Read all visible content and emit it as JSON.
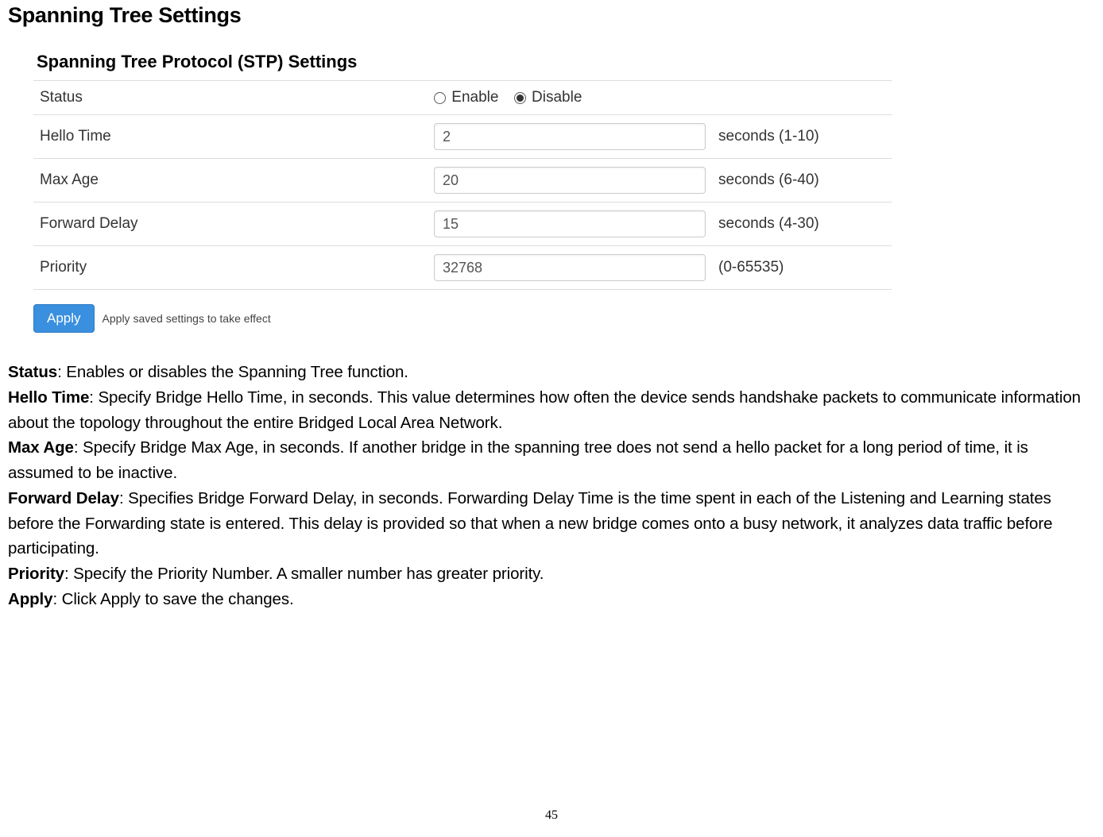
{
  "heading": "Spanning Tree Settings",
  "panel_title": "Spanning Tree Protocol (STP) Settings",
  "rows": {
    "status": {
      "label": "Status",
      "enable_label": "Enable",
      "disable_label": "Disable",
      "selected": "disable"
    },
    "hello_time": {
      "label": "Hello Time",
      "value": "2",
      "unit": "seconds (1-10)"
    },
    "max_age": {
      "label": "Max Age",
      "value": "20",
      "unit": "seconds (6-40)"
    },
    "forward_delay": {
      "label": "Forward Delay",
      "value": "15",
      "unit": "seconds (4-30)"
    },
    "priority": {
      "label": "Priority",
      "value": "32768",
      "unit": "(0-65535)"
    }
  },
  "apply": {
    "button": "Apply",
    "hint": "Apply saved settings to take effect"
  },
  "descriptions": {
    "status_term": "Status",
    "status_text": ": Enables or disables the Spanning Tree function.",
    "hello_term": "Hello Time",
    "hello_text": ": Specify Bridge Hello Time, in seconds. This value determines how often the device sends handshake packets to communicate information about the topology throughout the entire Bridged Local Area Network.",
    "maxage_term": "Max Age",
    "maxage_text": ": Specify Bridge Max Age, in seconds. If another bridge in the spanning tree does not send a hello packet for a long period of time, it is assumed to be inactive.",
    "fdelay_term": "Forward Delay",
    "fdelay_text": ": Specifies Bridge Forward Delay, in seconds. Forwarding Delay Time is the time spent in each of the Listening and Learning states before the Forwarding state is entered. This delay is provided so that when a new bridge comes onto a busy network, it analyzes data traffic before participating.",
    "priority_term": "Priority",
    "priority_text": ": Specify the Priority Number. A smaller number has greater priority.",
    "apply_term": "Apply",
    "apply_text": ": Click Apply to save the changes."
  },
  "page_number": "45",
  "colors": {
    "button_bg": "#3a8fde",
    "border": "#ddd"
  }
}
